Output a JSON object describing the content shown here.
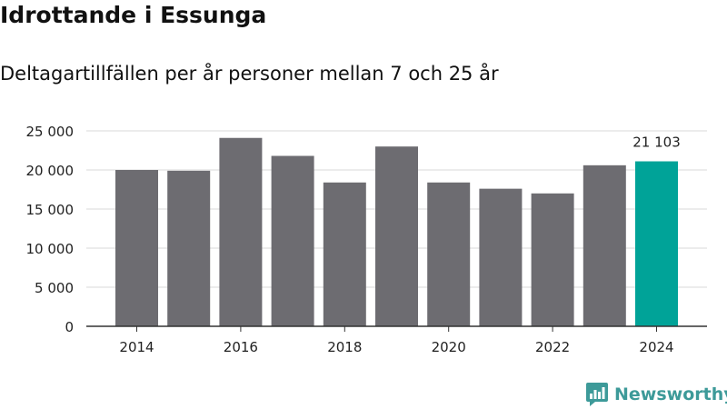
{
  "title": "Idrottande i Essunga",
  "subtitle": "Deltagartillfällen per år personer mellan 7 och 25 år",
  "brand": {
    "name": "Newsworthy",
    "icon": "newsworthy-logo-icon",
    "color": "#3d9a99"
  },
  "chart_data": {
    "type": "bar",
    "categories": [
      2014,
      2015,
      2016,
      2017,
      2018,
      2019,
      2020,
      2021,
      2022,
      2023,
      2024
    ],
    "values": [
      20000,
      19900,
      24100,
      21800,
      18400,
      23000,
      18400,
      17600,
      17000,
      20600,
      21103
    ],
    "x_tick_labels": [
      "2014",
      "2016",
      "2018",
      "2020",
      "2022",
      "2024"
    ],
    "y_tick_labels": [
      "0",
      "5 000",
      "10 000",
      "15 000",
      "20 000",
      "25 000"
    ],
    "y_ticks": [
      0,
      5000,
      10000,
      15000,
      20000,
      25000
    ],
    "ylim": [
      0,
      25000
    ],
    "grid": true,
    "bar_color": "#6d6c71",
    "highlight_color": "#00a398",
    "highlight_category": 2024,
    "annotations": [
      {
        "category": 2024,
        "text": "21 103"
      }
    ]
  }
}
